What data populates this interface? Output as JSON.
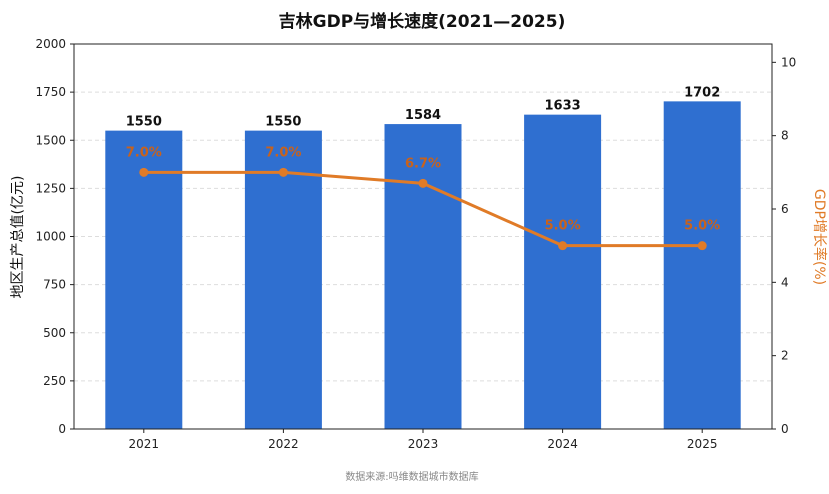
{
  "chart_data": {
    "type": "bar",
    "title": "吉林GDP与增长速度(2021—2025)",
    "categories": [
      "2021",
      "2022",
      "2023",
      "2024",
      "2025"
    ],
    "series": [
      {
        "name": "地区生产总值(亿元)",
        "type": "bar",
        "axis": "left",
        "values": [
          1550,
          1550,
          1584,
          1633,
          1702
        ],
        "labels": [
          "1550",
          "1550",
          "1584",
          "1633",
          "1702"
        ],
        "color": "#2f6fd0"
      },
      {
        "name": "GDP增长率(%)",
        "type": "line",
        "axis": "right",
        "values": [
          7.0,
          7.0,
          6.7,
          5.0,
          5.0
        ],
        "labels": [
          "7.0%",
          "7.0%",
          "6.7%",
          "5.0%",
          "5.0%"
        ],
        "color": "#e07b27"
      }
    ],
    "ylabel": "地区生产总值(亿元)",
    "y2label": "GDP增长率(%)",
    "ylim": [
      0,
      2000
    ],
    "y2lim": [
      0,
      10.5
    ],
    "yticks": [
      "0",
      "250",
      "500",
      "750",
      "1000",
      "1250",
      "1500",
      "1750",
      "2000"
    ],
    "y2ticks": [
      "0",
      "2",
      "4",
      "6",
      "8",
      "10"
    ],
    "grid": "horizontal dashed",
    "source": "数据来源:吗维数据城市数据库"
  }
}
